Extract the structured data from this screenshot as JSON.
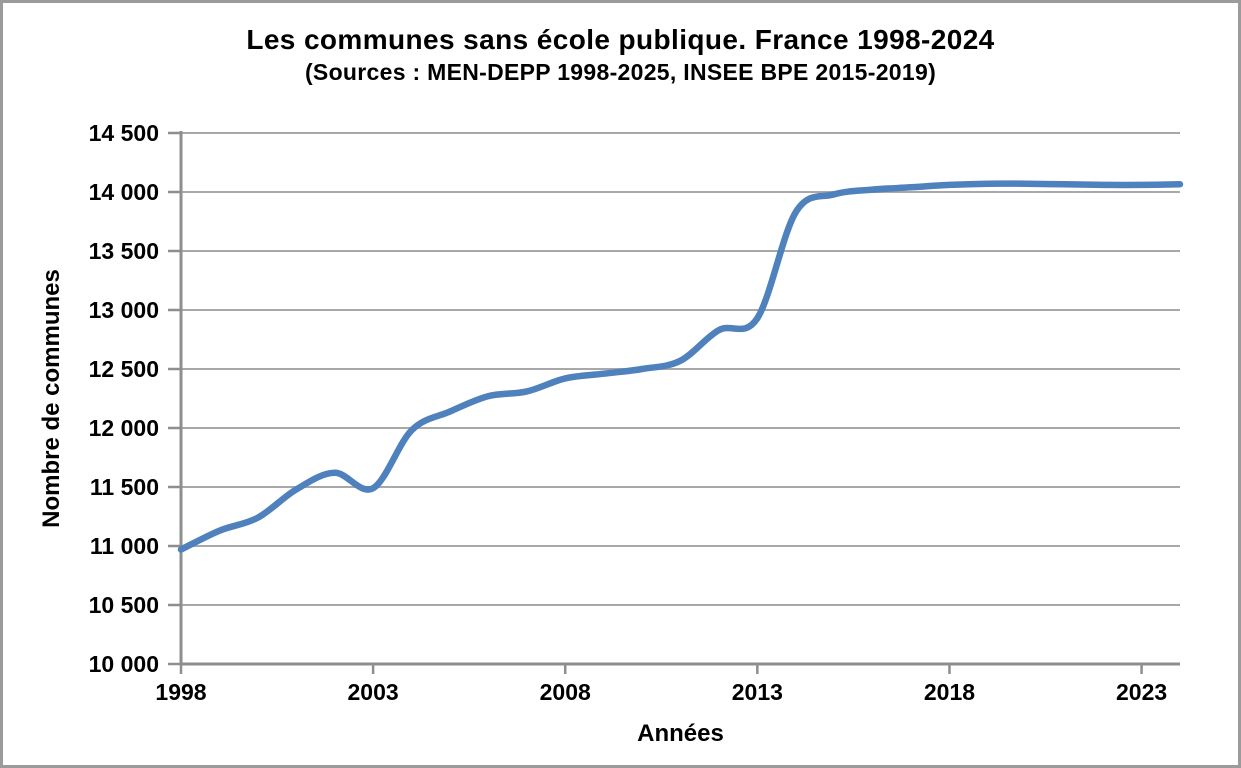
{
  "chart_data": {
    "type": "line",
    "title": "Les communes sans école publique. France 1998-2024",
    "subtitle": "(Sources : MEN-DEPP 1998-2025, INSEE BPE 2015-2019)",
    "xlabel": "Années",
    "ylabel": "Nombre de communes",
    "x": [
      1998,
      1999,
      2000,
      2001,
      2002,
      2003,
      2004,
      2005,
      2006,
      2007,
      2008,
      2009,
      2010,
      2011,
      2012,
      2013,
      2014,
      2015,
      2016,
      2017,
      2018,
      2019,
      2020,
      2021,
      2022,
      2023,
      2024
    ],
    "values": [
      10970,
      11130,
      11240,
      11480,
      11620,
      11490,
      11980,
      12140,
      12270,
      12310,
      12420,
      12460,
      12500,
      12570,
      12830,
      12930,
      13830,
      13980,
      14020,
      14040,
      14060,
      14070,
      14070,
      14065,
      14060,
      14060,
      14065
    ],
    "xlim": [
      1998,
      2024
    ],
    "ylim": [
      10000,
      14500
    ],
    "ytick_interval": 500,
    "ytick_labels": [
      "10 000",
      "10 500",
      "11 000",
      "11 500",
      "12 000",
      "12 500",
      "13 000",
      "13 500",
      "14 000",
      "14 500"
    ],
    "xticks": [
      1998,
      2003,
      2008,
      2013,
      2018,
      2023
    ],
    "grid": "horizontal",
    "legend": "none",
    "smoothed": true,
    "colors": {
      "line": "#4F81BD",
      "grid": "#a8a8a8",
      "axis": "#8e8e8e",
      "text": "#000000",
      "background": "#ffffff",
      "frame_border": "#9b9b9b"
    }
  }
}
